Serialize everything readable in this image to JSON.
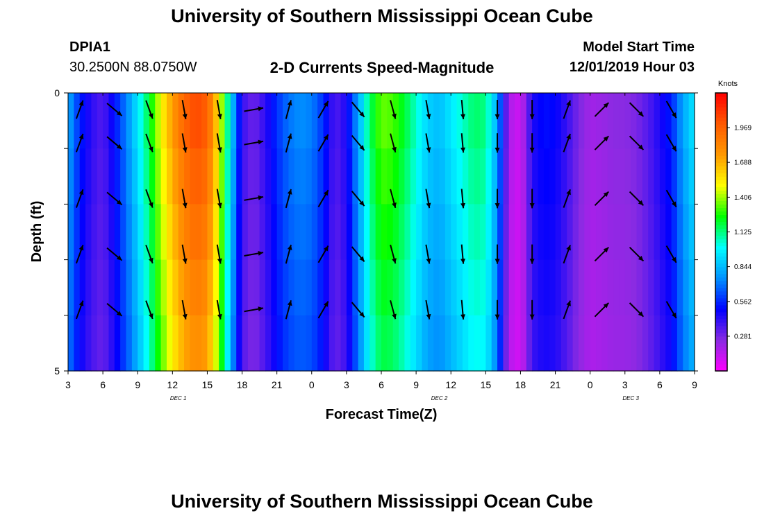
{
  "header": {
    "title": "University of Southern Mississippi Ocean Cube",
    "station_id": "DPIA1",
    "station_coords": "30.2500N 88.0750W",
    "subtitle": "2-D Currents Speed-Magnitude",
    "model_start_label": "Model Start Time",
    "model_start_value": "12/01/2019 Hour 03"
  },
  "footer": {
    "title": "University of Southern Mississippi Ocean Cube"
  },
  "chart_data": {
    "type": "heatmap",
    "title": "2-D Currents Speed-Magnitude",
    "xlabel": "Forecast Time(Z)",
    "ylabel": "Depth (ft)",
    "x_tick_labels": [
      "3",
      "6",
      "9",
      "12",
      "15",
      "18",
      "21",
      "0",
      "3",
      "6",
      "9",
      "12",
      "15",
      "18",
      "21",
      "0",
      "3",
      "6",
      "9"
    ],
    "x_range_hours": [
      0,
      54
    ],
    "x_tick_step_hours": 3,
    "day_labels": [
      {
        "label": "DEC 1",
        "at_hour": 9.5
      },
      {
        "label": "DEC 2",
        "at_hour": 32
      },
      {
        "label": "DEC 3",
        "at_hour": 48.5
      }
    ],
    "y_tick_labels": [
      "0",
      "5"
    ],
    "y_range": [
      0,
      5
    ],
    "depth_rows": [
      0.5,
      1.5,
      2.5,
      3.5,
      4.5
    ],
    "colorbar": {
      "unit": "Knots",
      "min": 0.0,
      "max": 2.25,
      "tick_values": [
        0.281,
        0.562,
        0.844,
        1.125,
        1.406,
        1.688,
        1.969
      ],
      "tick_labels": [
        "0.281",
        "0.562",
        "0.844",
        "1.125",
        "1.406",
        "1.688",
        "1.969"
      ],
      "palette": [
        "#ff00ff",
        "#8a2be2",
        "#0000ff",
        "#0090ff",
        "#00ffff",
        "#00ff00",
        "#ffff00",
        "#ff9900",
        "#ff5a00",
        "#ff0000"
      ]
    },
    "speed_series_hours": [
      0,
      1,
      2,
      3,
      4,
      5,
      6,
      7,
      8,
      9,
      10,
      11,
      12,
      13,
      14,
      15,
      16,
      17,
      18,
      19,
      20,
      21,
      22,
      23,
      24,
      25,
      26,
      27,
      28,
      29,
      30,
      31,
      32,
      33,
      34,
      35,
      36,
      37,
      38,
      39,
      40,
      41,
      42,
      43,
      44,
      45,
      46,
      47,
      48,
      49,
      50,
      51,
      52,
      53,
      54
    ],
    "speed_series_knots": [
      0.82,
      0.56,
      0.42,
      0.35,
      0.52,
      0.72,
      0.95,
      1.2,
      1.5,
      1.75,
      1.95,
      2.05,
      1.98,
      1.55,
      0.95,
      0.4,
      0.3,
      0.42,
      0.58,
      0.7,
      0.75,
      0.72,
      0.58,
      0.35,
      0.45,
      0.8,
      1.15,
      1.35,
      1.32,
      1.2,
      1.05,
      0.9,
      0.85,
      0.95,
      1.05,
      1.15,
      1.12,
      0.8,
      0.18,
      0.1,
      0.45,
      0.52,
      0.5,
      0.4,
      0.28,
      0.2,
      0.22,
      0.25,
      0.25,
      0.28,
      0.35,
      0.45,
      0.55,
      0.8,
      0.95
    ],
    "vector_hours": [
      1,
      4,
      7,
      10,
      13,
      16,
      19,
      22,
      25,
      28,
      31,
      34,
      37,
      40,
      43,
      46,
      49,
      52
    ],
    "vector_directions_deg": [
      20,
      130,
      160,
      170,
      170,
      80,
      15,
      30,
      140,
      165,
      170,
      175,
      180,
      180,
      20,
      45,
      135,
      150
    ],
    "vector_direction_note": "compass degrees toward which current flows, 0 = north (up)"
  }
}
